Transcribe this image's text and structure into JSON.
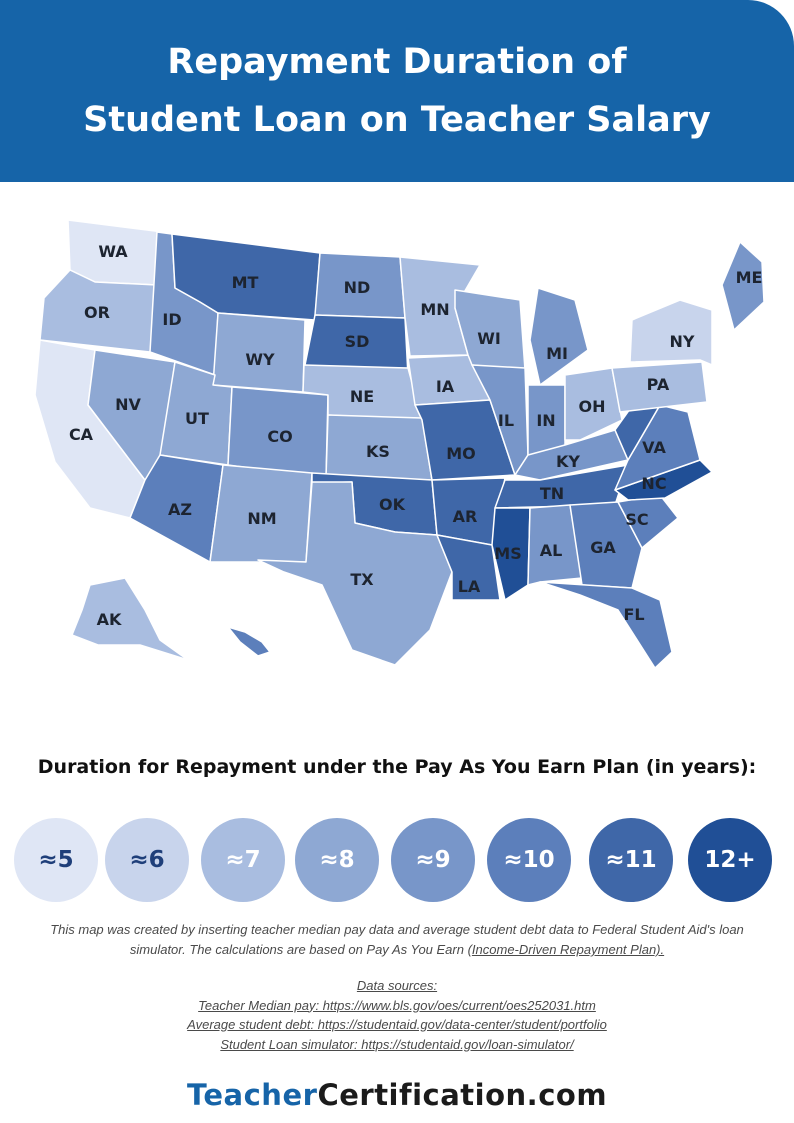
{
  "header": {
    "title_line1": "Repayment Duration of",
    "title_line2": "Student Loan on Teacher Salary",
    "color": "#1664a8"
  },
  "map": {
    "title": "Duration for Repayment under the Pay As You Earn Plan (in years)",
    "scale_colors": {
      "5": "#dfe6f5",
      "6": "#c8d4ec",
      "7": "#a9bde0",
      "8": "#8ea8d3",
      "9": "#7896c9",
      "10": "#5c7fbb",
      "11": "#3f67a8",
      "12+": "#204f96"
    },
    "states": [
      {
        "code": "WA",
        "years": "5"
      },
      {
        "code": "OR",
        "years": "7"
      },
      {
        "code": "CA",
        "years": "5"
      },
      {
        "code": "NV",
        "years": "8"
      },
      {
        "code": "ID",
        "years": "9"
      },
      {
        "code": "MT",
        "years": "11"
      },
      {
        "code": "WY",
        "years": "8"
      },
      {
        "code": "UT",
        "years": "8"
      },
      {
        "code": "AZ",
        "years": "10"
      },
      {
        "code": "CO",
        "years": "9"
      },
      {
        "code": "NM",
        "years": "8"
      },
      {
        "code": "ND",
        "years": "9"
      },
      {
        "code": "SD",
        "years": "11"
      },
      {
        "code": "NE",
        "years": "7"
      },
      {
        "code": "KS",
        "years": "8"
      },
      {
        "code": "OK",
        "years": "11"
      },
      {
        "code": "TX",
        "years": "8"
      },
      {
        "code": "MN",
        "years": "7"
      },
      {
        "code": "IA",
        "years": "7"
      },
      {
        "code": "MO",
        "years": "11"
      },
      {
        "code": "AR",
        "years": "11"
      },
      {
        "code": "LA",
        "years": "11"
      },
      {
        "code": "WI",
        "years": "8"
      },
      {
        "code": "IL",
        "years": "9"
      },
      {
        "code": "MI",
        "years": "9"
      },
      {
        "code": "IN",
        "years": "9"
      },
      {
        "code": "OH",
        "years": "7"
      },
      {
        "code": "KY",
        "years": "9"
      },
      {
        "code": "TN",
        "years": "11"
      },
      {
        "code": "MS",
        "years": "12+"
      },
      {
        "code": "AL",
        "years": "9"
      },
      {
        "code": "GA",
        "years": "10"
      },
      {
        "code": "FL",
        "years": "10"
      },
      {
        "code": "SC",
        "years": "10"
      },
      {
        "code": "NC",
        "years": "12+"
      },
      {
        "code": "VA",
        "years": "10"
      },
      {
        "code": "WV",
        "years": "11"
      },
      {
        "code": "PA",
        "years": "7"
      },
      {
        "code": "NY",
        "years": "6"
      },
      {
        "code": "ME",
        "years": "9"
      },
      {
        "code": "AK",
        "years": "7"
      },
      {
        "code": "HI",
        "years": "10"
      }
    ]
  },
  "legend": {
    "items": [
      {
        "label": "≈5",
        "key": "5",
        "text_color": "#1f3f7a"
      },
      {
        "label": "≈6",
        "key": "6",
        "text_color": "#1f3f7a"
      },
      {
        "label": "≈7",
        "key": "7",
        "text_color": "#ffffff"
      },
      {
        "label": "≈8",
        "key": "8",
        "text_color": "#ffffff"
      },
      {
        "label": "≈9",
        "key": "9",
        "text_color": "#ffffff"
      },
      {
        "label": "≈10",
        "key": "10",
        "text_color": "#ffffff"
      },
      {
        "label": "≈11",
        "key": "11",
        "text_color": "#ffffff"
      },
      {
        "label": "12+",
        "key": "12+",
        "text_color": "#ffffff"
      }
    ]
  },
  "note": {
    "line1": "This map was created by inserting teacher median pay data and average student debt data to Federal Student Aid's loan",
    "line2_prefix": "simulator. The calculations are based on Pay As You Earn (",
    "line2_link": "Income-Driven Repayment Plan). "
  },
  "sources": {
    "heading": "Data sources: ",
    "median_pay": "Teacher Median pay: https://www.bls.gov/oes/current/oes252031.htm",
    "student_debt": "Average student debt: https://studentaid.gov/data-center/student/portfolio",
    "simulator": "Student Loan simulator: https://studentaid.gov/loan-simulator/"
  },
  "brand": {
    "part1": "Teacher",
    "part2": "Certification.com",
    "color1": "#1664a8",
    "color2": "#1b1b1b"
  }
}
